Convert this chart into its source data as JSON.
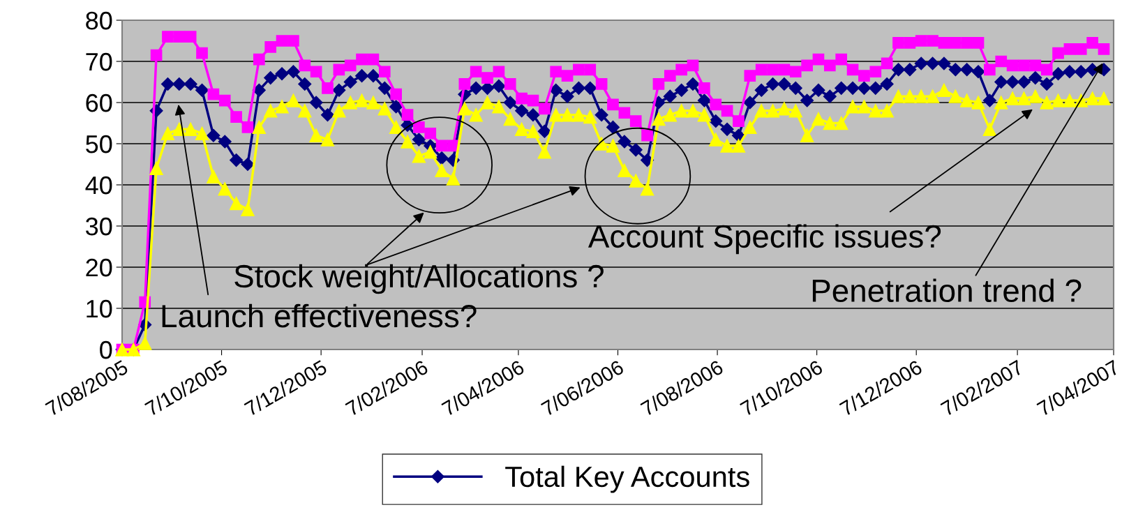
{
  "chart_data": {
    "type": "line",
    "x": [
      "2005-08-07",
      "2005-08-14",
      "2005-08-21",
      "2005-08-28",
      "2005-09-04",
      "2005-09-11",
      "2005-09-18",
      "2005-09-25",
      "2005-10-02",
      "2005-10-09",
      "2005-10-16",
      "2005-10-23",
      "2005-10-30",
      "2005-11-06",
      "2005-11-13",
      "2005-11-20",
      "2005-11-27",
      "2005-12-04",
      "2005-12-11",
      "2005-12-18",
      "2005-12-25",
      "2006-01-01",
      "2006-01-08",
      "2006-01-15",
      "2006-01-22",
      "2006-01-29",
      "2006-02-05",
      "2006-02-12",
      "2006-02-19",
      "2006-02-26",
      "2006-03-05",
      "2006-03-12",
      "2006-03-19",
      "2006-03-26",
      "2006-04-02",
      "2006-04-09",
      "2006-04-16",
      "2006-04-23",
      "2006-04-30",
      "2006-05-07",
      "2006-05-14",
      "2006-05-21",
      "2006-05-28",
      "2006-06-04",
      "2006-06-11",
      "2006-06-18",
      "2006-06-25",
      "2006-07-02",
      "2006-07-09",
      "2006-07-16",
      "2006-07-23",
      "2006-07-30",
      "2006-08-06",
      "2006-08-13",
      "2006-08-20",
      "2006-08-27",
      "2006-09-03",
      "2006-09-10",
      "2006-09-17",
      "2006-09-24",
      "2006-10-01",
      "2006-10-08",
      "2006-10-15",
      "2006-10-22",
      "2006-10-29",
      "2006-11-05",
      "2006-11-12",
      "2006-11-19",
      "2006-11-26",
      "2006-12-03",
      "2006-12-10",
      "2006-12-17",
      "2006-12-24",
      "2006-12-31",
      "2007-01-07",
      "2007-01-14",
      "2007-01-21",
      "2007-01-28",
      "2007-02-04",
      "2007-02-11",
      "2007-02-18",
      "2007-02-25",
      "2007-03-04",
      "2007-03-11",
      "2007-03-18",
      "2007-03-25",
      "2007-04-01"
    ],
    "series": [
      {
        "name": "Total Key Accounts",
        "color": "#000080",
        "marker": "diamond",
        "values": [
          0,
          0,
          6,
          58,
          64.5,
          64.5,
          64.5,
          63,
          52,
          50.5,
          46,
          45,
          63,
          66,
          67,
          67.5,
          64.5,
          60,
          57,
          63,
          65,
          66.5,
          66.5,
          63.5,
          59,
          54.5,
          51,
          49.5,
          46.5,
          46,
          62,
          63.5,
          63.5,
          64,
          60,
          58,
          57,
          53,
          63,
          61.5,
          63.5,
          63.5,
          57,
          54,
          50.5,
          48.5,
          46,
          60,
          61.5,
          63,
          64.5,
          60.5,
          55.5,
          53.5,
          52,
          60,
          63,
          64.5,
          64.5,
          63.5,
          60.5,
          63,
          61.5,
          63.5,
          63.5,
          63.5,
          63.5,
          64.5,
          68,
          68,
          69.5,
          69.5,
          69.5,
          68,
          68,
          67.5,
          60.5,
          65,
          65,
          65,
          66,
          64.5,
          67,
          67.5,
          67.5,
          68,
          68
        ]
      },
      {
        "color": "#ff00ff",
        "marker": "square",
        "values": [
          0,
          0,
          11.5,
          71.5,
          76,
          76,
          76,
          72,
          62,
          60.5,
          56.5,
          54,
          70.5,
          73.5,
          75,
          75,
          69,
          67.5,
          63.5,
          68,
          69,
          70.5,
          70.5,
          67.5,
          62,
          57,
          54,
          52.5,
          49.5,
          49.5,
          64.5,
          67.5,
          66,
          67.5,
          64.5,
          61,
          60.5,
          58.5,
          67.5,
          66.5,
          68,
          68,
          64.5,
          59.5,
          57.5,
          55.5,
          52,
          64.5,
          66.5,
          68,
          69,
          63.5,
          59.5,
          58,
          55.5,
          66.5,
          68,
          68,
          68,
          67.5,
          69,
          70.5,
          69,
          70.5,
          68,
          66.5,
          67.5,
          69.5,
          74.5,
          74.5,
          75,
          75,
          74.5,
          74.5,
          74.5,
          74.5,
          68,
          70,
          69,
          69,
          69,
          68,
          72,
          73,
          73,
          74.5,
          73
        ]
      },
      {
        "color": "#ffff00",
        "marker": "triangle",
        "values": [
          0,
          0,
          1.5,
          44,
          52.5,
          53.5,
          53.5,
          52.5,
          42,
          39,
          35.5,
          34,
          54,
          58,
          59,
          60.5,
          58,
          52,
          51,
          58,
          60,
          60.5,
          60,
          58.5,
          54,
          50.5,
          47,
          48,
          43.5,
          41.5,
          58.5,
          57,
          60,
          59,
          56,
          53.5,
          53,
          48,
          57,
          57,
          57,
          56.5,
          50,
          49.5,
          43.5,
          41,
          39,
          56,
          57,
          58,
          58,
          57,
          51,
          49.5,
          49.5,
          54,
          58,
          58,
          58.5,
          58,
          52,
          56,
          55,
          55,
          59,
          59,
          58,
          58,
          61.5,
          61.5,
          61.5,
          61.5,
          63,
          61.5,
          60.5,
          60,
          53.5,
          60,
          61,
          61,
          61.5,
          60,
          60.5,
          60.5,
          60.5,
          61,
          61
        ]
      }
    ],
    "xlim": [
      "2005-08-07",
      "2007-04-07"
    ],
    "xticks": [
      {
        "value": "2005-08-07",
        "label": "7/08/2005"
      },
      {
        "value": "2005-10-07",
        "label": "7/10/2005"
      },
      {
        "value": "2005-12-07",
        "label": "7/12/2005"
      },
      {
        "value": "2006-02-07",
        "label": "7/02/2006"
      },
      {
        "value": "2006-04-07",
        "label": "7/04/2006"
      },
      {
        "value": "2006-06-07",
        "label": "7/06/2006"
      },
      {
        "value": "2006-08-07",
        "label": "7/08/2006"
      },
      {
        "value": "2006-10-07",
        "label": "7/10/2006"
      },
      {
        "value": "2006-12-07",
        "label": "7/12/2006"
      },
      {
        "value": "2007-02-07",
        "label": "7/02/2007"
      },
      {
        "value": "2007-04-07",
        "label": "7/04/2007"
      }
    ],
    "ylim": [
      0,
      80
    ],
    "yticks": [
      0,
      10,
      20,
      30,
      40,
      50,
      60,
      70,
      80
    ],
    "grid": "y",
    "legend": "bottom",
    "line_style": "solid",
    "annotations": [
      "Launch effectiveness?",
      "Stock weight/Allocations ?",
      "Account Specific issues?",
      {
        "text": "Penetration trend ?",
        "x": "2007-04-01",
        "y": 70
      }
    ]
  }
}
